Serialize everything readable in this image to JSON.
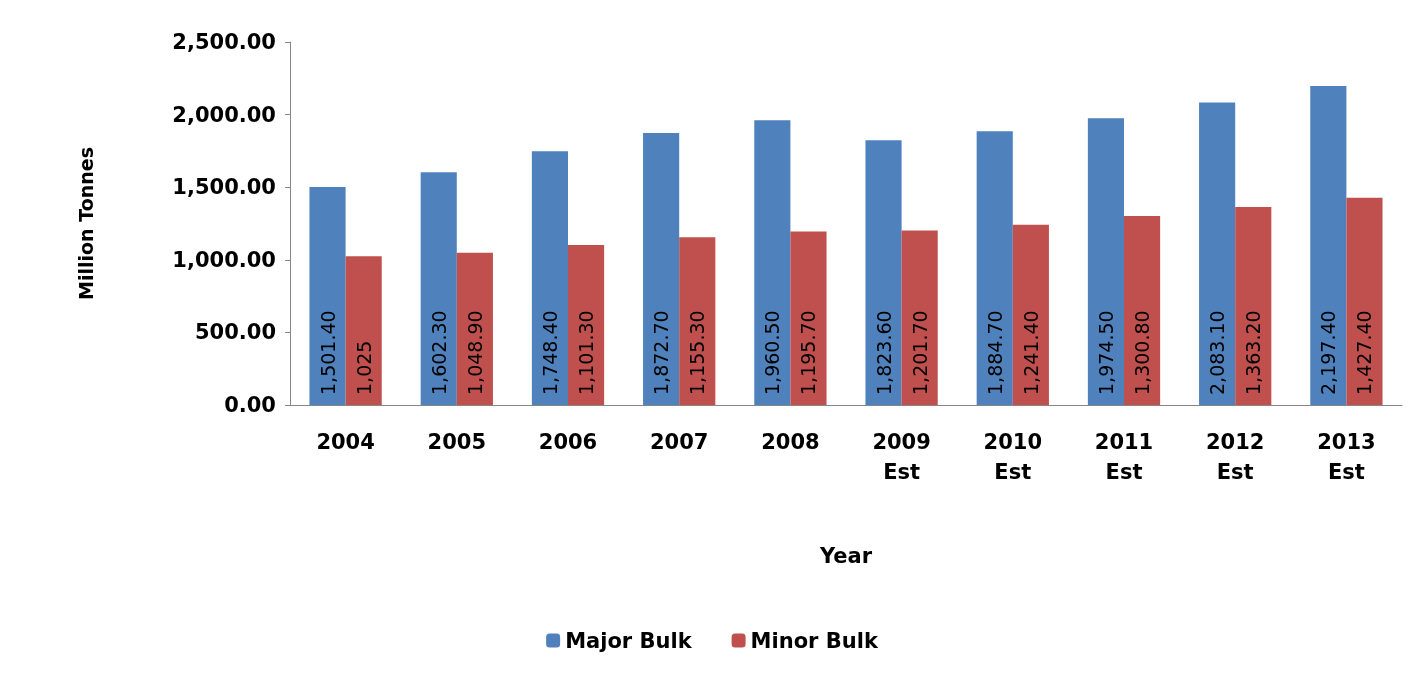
{
  "chart_data": {
    "type": "bar",
    "categories": [
      "2004",
      "2005",
      "2006",
      "2007",
      "2008",
      "2009 Est",
      "2010 Est",
      "2011 Est",
      "2012 Est",
      "2013 Est"
    ],
    "series": [
      {
        "name": "Major Bulk",
        "color": "#4f81bd",
        "values": [
          1501.4,
          1602.3,
          1748.4,
          1872.7,
          1960.5,
          1823.6,
          1884.7,
          1974.5,
          2083.1,
          2197.4
        ],
        "value_labels": [
          "1,501.40",
          "1,602.30",
          "1,748.40",
          "1,872.70",
          "1,960.50",
          "1,823.60",
          "1,884.70",
          "1,974.50",
          "2,083.10",
          "2,197.40"
        ]
      },
      {
        "name": "Minor Bulk",
        "color": "#c0504d",
        "values": [
          1025,
          1048.9,
          1101.3,
          1155.3,
          1195.7,
          1201.7,
          1241.4,
          1300.8,
          1363.2,
          1427.4
        ],
        "value_labels": [
          "1,025",
          "1,048.90",
          "1,101.30",
          "1,155.30",
          "1,195.70",
          "1,201.70",
          "1,241.40",
          "1,300.80",
          "1,363.20",
          "1,427.40"
        ]
      }
    ],
    "xlabel": "Year",
    "ylabel": "Million Tonnes",
    "ylim": [
      0,
      2500
    ],
    "yticks": [
      {
        "value": 0,
        "label": "0.00"
      },
      {
        "value": 500,
        "label": "500.00"
      },
      {
        "value": 1000,
        "label": "1,000.00"
      },
      {
        "value": 1500,
        "label": "1,500.00"
      },
      {
        "value": 2000,
        "label": "2,000.00"
      },
      {
        "value": 2500,
        "label": "2,500.00"
      }
    ],
    "grid": false,
    "legend": "bottom"
  }
}
